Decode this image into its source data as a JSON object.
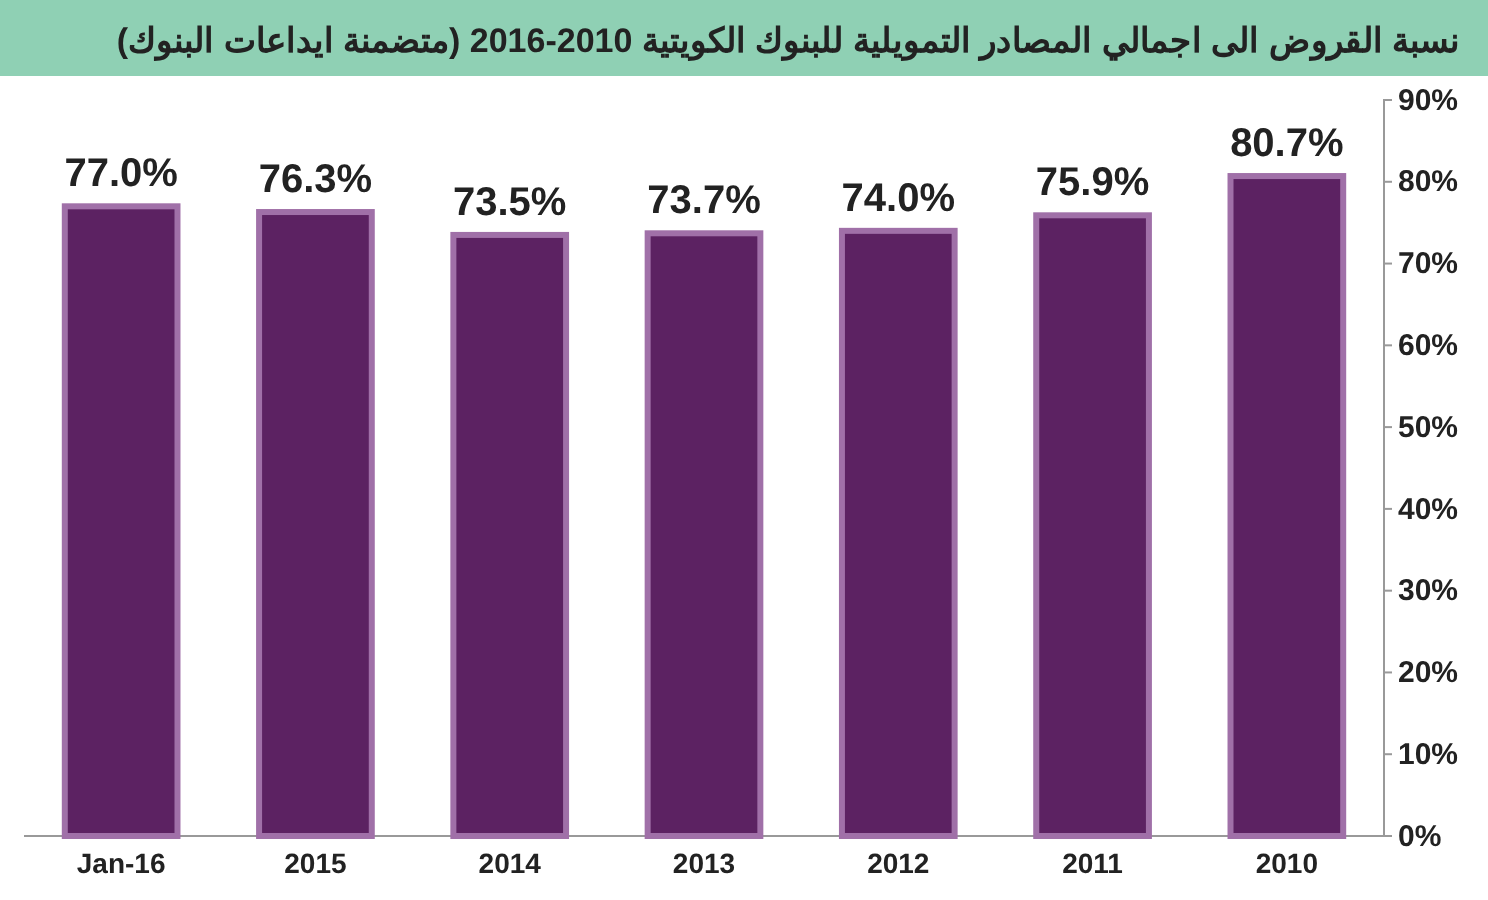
{
  "chart_data": {
    "type": "bar",
    "title": "نسبة القروض الى اجمالي المصادر التمويلية للبنوك الكويتية 2010-2016 (متضمنة ايداعات البنوك)",
    "categories": [
      "Jan-16",
      "2015",
      "2014",
      "2013",
      "2012",
      "2011",
      "2010"
    ],
    "values": [
      77.0,
      76.3,
      73.5,
      73.7,
      74.0,
      75.9,
      80.7
    ],
    "value_labels": [
      "77.0%",
      "76.3%",
      "73.5%",
      "73.7%",
      "74.0%",
      "75.9%",
      "80.7%"
    ],
    "color": "#5c2262",
    "ylim": [
      0,
      90
    ],
    "yticks": [
      {
        "value": 0,
        "label": "0%"
      },
      {
        "value": 10,
        "label": "10%"
      },
      {
        "value": 20,
        "label": "20%"
      },
      {
        "value": 30,
        "label": "30%"
      },
      {
        "value": 40,
        "label": "40%"
      },
      {
        "value": 50,
        "label": "50%"
      },
      {
        "value": 60,
        "label": "60%"
      },
      {
        "value": 70,
        "label": "70%"
      },
      {
        "value": 80,
        "label": "80%"
      },
      {
        "value": 90,
        "label": "90%"
      }
    ],
    "grid": false
  }
}
